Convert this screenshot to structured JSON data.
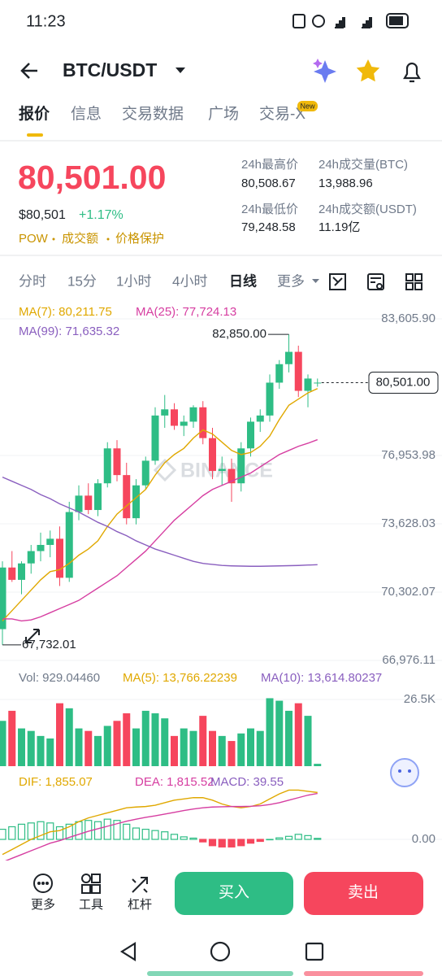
{
  "status_bar": {
    "time": "11:23"
  },
  "header": {
    "pair": "BTC/USDT"
  },
  "tabs": [
    "报价",
    "信息",
    "交易数据",
    "广场",
    "交易-X"
  ],
  "tab_badge": "New",
  "ticker": {
    "price": "80,501.00",
    "usd": "$80,501",
    "change": "+1.17%",
    "tags": [
      "POW",
      "成交额",
      "价格保护"
    ]
  },
  "stats": [
    {
      "label": "24h最高价",
      "value": "80,508.67"
    },
    {
      "label": "24h成交量(BTC)",
      "value": "13,988.96"
    },
    {
      "label": "24h最低价",
      "value": "79,248.58"
    },
    {
      "label": "24h成交额(USDT)",
      "value": "11.19亿"
    }
  ],
  "intervals": [
    "分时",
    "15分",
    "1小时",
    "4小时",
    "日线",
    "更多"
  ],
  "chart": {
    "type": "candlestick",
    "watermark": "BINANCE",
    "ylim": [
      66660,
      84280
    ],
    "yticks": [
      {
        "value": 83605.9,
        "label": "83,605.90"
      },
      {
        "value": 76953.98,
        "label": "76,953.98"
      },
      {
        "value": 73628.03,
        "label": "73,628.03"
      },
      {
        "value": 70302.07,
        "label": "70,302.07"
      },
      {
        "value": 66976.11,
        "label": "66,976.11"
      }
    ],
    "grid": true,
    "up_color": "#2ebd85",
    "down_color": "#f6465d",
    "last_price": {
      "value": 80501,
      "label": "80,501.00"
    },
    "high_marker": {
      "value": 82850,
      "label": "82,850.00"
    },
    "low_marker": {
      "value": 67732.01,
      "label": "67,732.01"
    },
    "candles": [
      {
        "open": 68500,
        "high": 71800,
        "low": 67732.01,
        "close": 71500
      },
      {
        "open": 71500,
        "high": 72300,
        "low": 70800,
        "close": 70900
      },
      {
        "open": 70900,
        "high": 71800,
        "low": 70200,
        "close": 71700
      },
      {
        "open": 71700,
        "high": 72600,
        "low": 71200,
        "close": 72300
      },
      {
        "open": 72300,
        "high": 73200,
        "low": 71800,
        "close": 72600
      },
      {
        "open": 72600,
        "high": 73300,
        "low": 72000,
        "close": 72900
      },
      {
        "open": 72900,
        "high": 73500,
        "low": 70600,
        "close": 71000
      },
      {
        "open": 71000,
        "high": 74700,
        "low": 70800,
        "close": 74200
      },
      {
        "open": 74200,
        "high": 75500,
        "low": 73800,
        "close": 75000
      },
      {
        "open": 75000,
        "high": 75600,
        "low": 74100,
        "close": 74300
      },
      {
        "open": 74300,
        "high": 75800,
        "low": 74000,
        "close": 75600
      },
      {
        "open": 75600,
        "high": 77600,
        "low": 75400,
        "close": 77300
      },
      {
        "open": 77300,
        "high": 77700,
        "low": 75700,
        "close": 76000
      },
      {
        "open": 76000,
        "high": 76600,
        "low": 73600,
        "close": 73900
      },
      {
        "open": 73900,
        "high": 75800,
        "low": 73600,
        "close": 75500
      },
      {
        "open": 75500,
        "high": 76900,
        "low": 75300,
        "close": 76700
      },
      {
        "open": 76700,
        "high": 79300,
        "low": 76500,
        "close": 78900
      },
      {
        "open": 78900,
        "high": 79900,
        "low": 78300,
        "close": 79200
      },
      {
        "open": 79200,
        "high": 79500,
        "low": 78200,
        "close": 78400
      },
      {
        "open": 78400,
        "high": 78900,
        "low": 77900,
        "close": 78600
      },
      {
        "open": 78600,
        "high": 79400,
        "low": 78300,
        "close": 79300
      },
      {
        "open": 79300,
        "high": 79600,
        "low": 77500,
        "close": 77800
      },
      {
        "open": 77800,
        "high": 78300,
        "low": 75800,
        "close": 76200
      },
      {
        "open": 76200,
        "high": 76900,
        "low": 75500,
        "close": 76300
      },
      {
        "open": 76300,
        "high": 76800,
        "low": 74700,
        "close": 75600
      },
      {
        "open": 75600,
        "high": 77600,
        "low": 75200,
        "close": 77300
      },
      {
        "open": 77300,
        "high": 78800,
        "low": 76900,
        "close": 78600
      },
      {
        "open": 78600,
        "high": 79200,
        "low": 78100,
        "close": 78900
      },
      {
        "open": 78900,
        "high": 80900,
        "low": 78600,
        "close": 80500
      },
      {
        "open": 80500,
        "high": 81600,
        "low": 80200,
        "close": 81400
      },
      {
        "open": 81400,
        "high": 82850,
        "low": 81000,
        "close": 82000
      },
      {
        "open": 82000,
        "high": 82300,
        "low": 79800,
        "close": 80100
      },
      {
        "open": 80100,
        "high": 80900,
        "low": 79300,
        "close": 80700
      },
      {
        "open": 80500,
        "high": 80700,
        "low": 80300,
        "close": 80501
      }
    ],
    "ma_lines": [
      {
        "legend": "MA(7): 80,211.75",
        "color": "#e0a800",
        "values": [
          68900,
          69400,
          69900,
          70400,
          70900,
          71300,
          71400,
          71700,
          72100,
          72400,
          72800,
          73500,
          74100,
          74500,
          74900,
          75300,
          76000,
          76600,
          77000,
          77300,
          77800,
          78200,
          78000,
          77600,
          77200,
          77000,
          77100,
          77400,
          77900,
          78700,
          79400,
          79700,
          80000,
          80211.75
        ]
      },
      {
        "legend": "MA(25): 77,724.13",
        "color": "#d63ea1",
        "values": [
          69000,
          69000,
          68900,
          68950,
          69100,
          69300,
          69500,
          69700,
          69900,
          70200,
          70500,
          70800,
          71100,
          71500,
          71900,
          72300,
          72800,
          73300,
          73800,
          74200,
          74600,
          75000,
          75300,
          75500,
          75700,
          75900,
          76100,
          76400,
          76700,
          77000,
          77200,
          77400,
          77550,
          77724.13
        ]
      },
      {
        "legend": "MA(99): 71,635.32",
        "color": "#8a5fbf",
        "values": [
          75900,
          75700,
          75500,
          75300,
          75050,
          74850,
          74600,
          74400,
          74200,
          73950,
          73700,
          73500,
          73250,
          73050,
          72800,
          72600,
          72400,
          72250,
          72100,
          71950,
          71800,
          71700,
          71650,
          71600,
          71580,
          71570,
          71560,
          71560,
          71570,
          71580,
          71590,
          71600,
          71620,
          71635.32
        ]
      }
    ],
    "volume": {
      "legend": [
        "Vol: 929.04460",
        "MA(5): 13,766.22239",
        "MA(10): 13,614.80237"
      ],
      "ylim": [
        0,
        31350
      ],
      "yticks": [
        {
          "value": 26500,
          "label": "26.5K"
        }
      ],
      "values": [
        18000,
        22000,
        15000,
        14000,
        12000,
        11000,
        25000,
        23000,
        15000,
        14000,
        12000,
        16000,
        18000,
        21000,
        15000,
        22000,
        21000,
        19000,
        12000,
        15000,
        14000,
        20000,
        14000,
        12000,
        10000,
        13000,
        15000,
        14000,
        27000,
        26000,
        22000,
        25000,
        20000,
        929.0446
      ]
    },
    "macd": {
      "legend": [
        "DIF: 1,855.07",
        "DEA: 1,815.52",
        "MACD: 39.55"
      ],
      "ylim": [
        -900,
        2800
      ],
      "yticks": [
        {
          "value": 0,
          "label": "0.00"
        }
      ],
      "hist": [
        400,
        500,
        600,
        650,
        700,
        650,
        500,
        600,
        700,
        750,
        700,
        800,
        750,
        600,
        450,
        400,
        350,
        300,
        200,
        100,
        50,
        -100,
        -250,
        -300,
        -300,
        -250,
        -150,
        -80,
        0,
        60,
        120,
        200,
        150,
        39.55
      ],
      "dif": [
        -600,
        -400,
        -200,
        0,
        150,
        300,
        350,
        500,
        700,
        850,
        950,
        1050,
        1150,
        1250,
        1280,
        1300,
        1350,
        1450,
        1550,
        1600,
        1650,
        1650,
        1550,
        1400,
        1300,
        1250,
        1300,
        1400,
        1600,
        1800,
        1950,
        1950,
        1900,
        1855.07
      ],
      "dea": [
        -900,
        -750,
        -600,
        -450,
        -300,
        -150,
        -50,
        80,
        200,
        320,
        420,
        520,
        620,
        720,
        800,
        870,
        930,
        1000,
        1070,
        1140,
        1200,
        1250,
        1280,
        1290,
        1300,
        1300,
        1310,
        1330,
        1380,
        1450,
        1550,
        1650,
        1750,
        1815.52
      ]
    }
  },
  "bottom_bar": {
    "tools": [
      "更多",
      "工具",
      "杠杆"
    ],
    "buy": "买入",
    "sell": "卖出"
  }
}
